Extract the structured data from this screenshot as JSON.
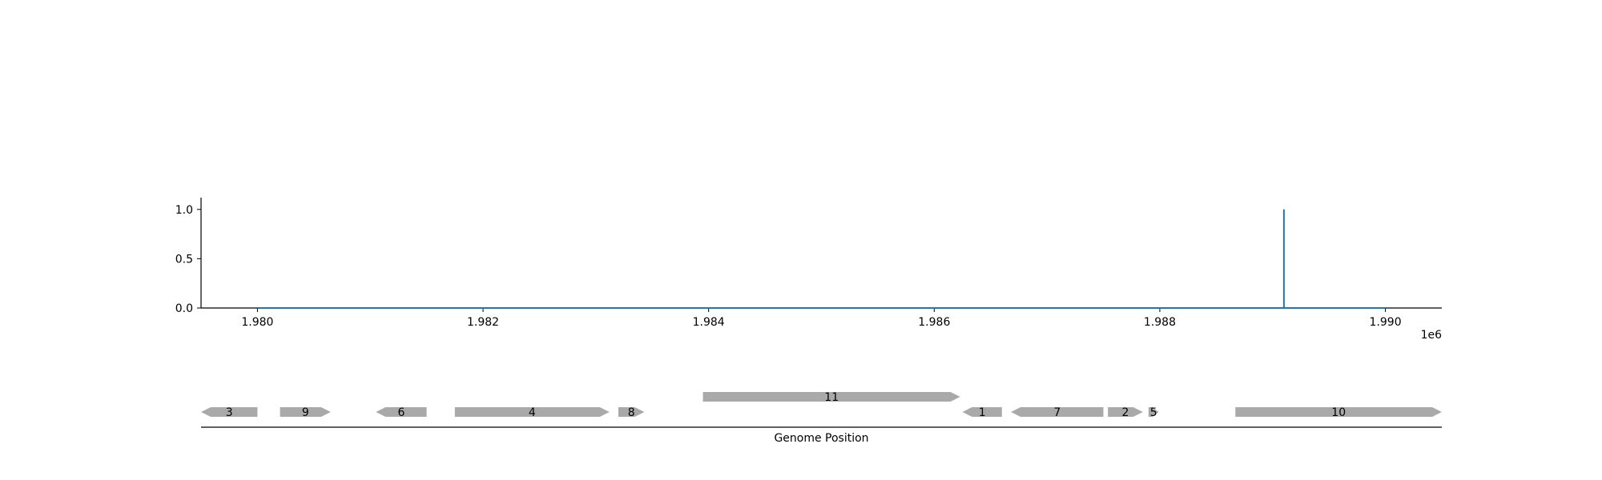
{
  "chart_data": [
    {
      "type": "line",
      "title": "",
      "xlabel": "",
      "ylabel": "",
      "x_offset_label": "1e6",
      "xlim": [
        1979500,
        1990500
      ],
      "ylim": [
        0,
        1.12
      ],
      "x_ticks": [
        1980000,
        1982000,
        1984000,
        1986000,
        1988000,
        1990000
      ],
      "x_tick_labels": [
        "1.980",
        "1.982",
        "1.984",
        "1.986",
        "1.988",
        "1.990"
      ],
      "y_ticks": [
        0,
        0.5,
        1
      ],
      "y_tick_labels": [
        "0.0",
        "0.5",
        "1.0"
      ],
      "grid": false,
      "legend": "none",
      "series": [
        {
          "color": "#1f77b4",
          "x": [
            1980000,
            1989100,
            1989100,
            1989100,
            1989100,
            1990000
          ],
          "y": [
            0,
            0,
            1,
            1,
            0,
            0
          ]
        }
      ]
    },
    {
      "type": "gene-track",
      "xlabel": "Genome Position",
      "xlim": [
        1979500,
        1990500
      ],
      "feature_color": "#a9a9a9",
      "genes": [
        {
          "label": "3",
          "start": 1979500,
          "end": 1980000,
          "strand": "-",
          "row": 0
        },
        {
          "label": "9",
          "start": 1980200,
          "end": 1980650,
          "strand": "+",
          "row": 0
        },
        {
          "label": "6",
          "start": 1981050,
          "end": 1981500,
          "strand": "-",
          "row": 0
        },
        {
          "label": "4",
          "start": 1981750,
          "end": 1983120,
          "strand": "+",
          "row": 0
        },
        {
          "label": "8",
          "start": 1983200,
          "end": 1983430,
          "strand": "+",
          "row": 0
        },
        {
          "label": "11",
          "start": 1983950,
          "end": 1986230,
          "strand": "+",
          "row": 1
        },
        {
          "label": "1",
          "start": 1986250,
          "end": 1986600,
          "strand": "-",
          "row": 0
        },
        {
          "label": "7",
          "start": 1986680,
          "end": 1987500,
          "strand": "-",
          "row": 0
        },
        {
          "label": "2",
          "start": 1987540,
          "end": 1987850,
          "strand": "+",
          "row": 0
        },
        {
          "label": "5",
          "start": 1987900,
          "end": 1987990,
          "strand": "+",
          "row": 0
        },
        {
          "label": "10",
          "start": 1988670,
          "end": 1990500,
          "strand": "+",
          "row": 0
        }
      ]
    }
  ]
}
